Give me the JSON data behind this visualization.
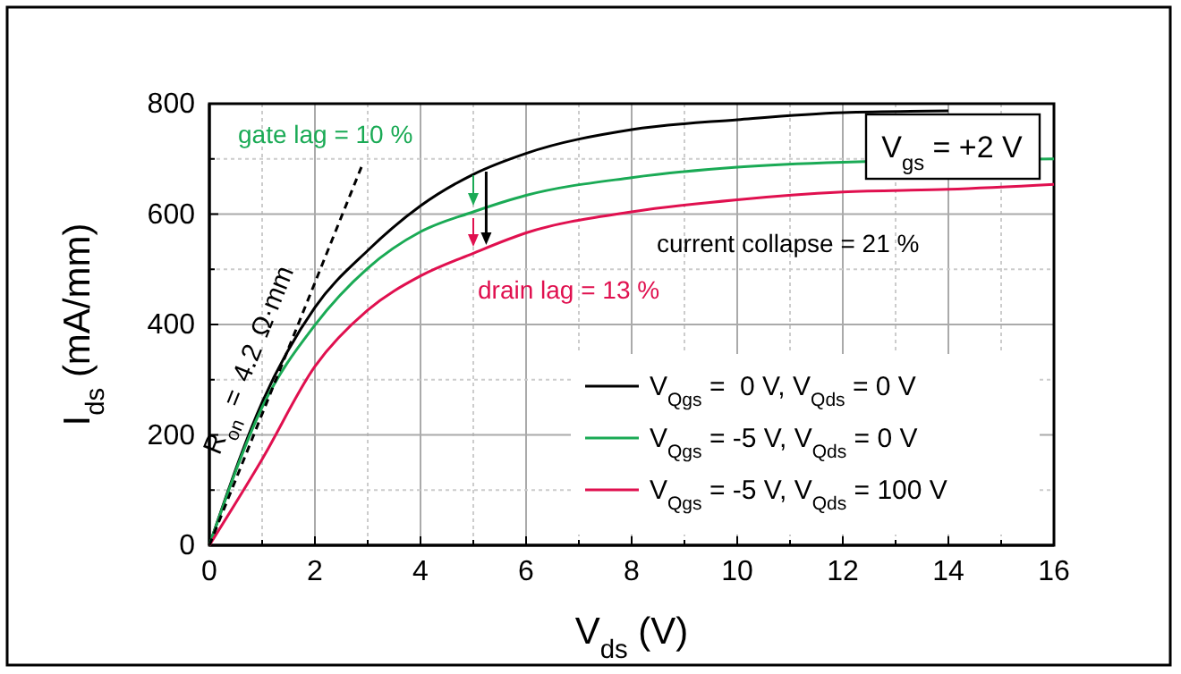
{
  "chart_data": {
    "type": "line",
    "xlabel": "V$_{ds}$ (V)",
    "ylabel": "I$_{ds}$ (mA/mm)",
    "xlim": [
      0,
      16
    ],
    "ylim": [
      0,
      800
    ],
    "xticks": [
      0,
      {
        "value": 1,
        "label": null
      },
      2,
      {
        "value": 3,
        "label": null
      },
      4,
      {
        "value": 5,
        "label": null
      },
      6,
      {
        "value": 7,
        "label": null
      },
      8,
      {
        "value": 9,
        "label": null
      },
      10,
      {
        "value": 11,
        "label": null
      },
      12,
      {
        "value": 13,
        "label": null
      },
      14,
      {
        "value": 15,
        "label": null
      },
      16
    ],
    "yticks": [
      0,
      {
        "value": 100,
        "label": null
      },
      200,
      {
        "value": 300,
        "label": null
      },
      400,
      {
        "value": 500,
        "label": null
      },
      600,
      {
        "value": 700,
        "label": null
      },
      800
    ],
    "grid": true,
    "legend": "bottom right",
    "series": [
      {
        "name": "V$_{Qgs}$ =  0 V, V$_{Qds}$ = 0 V",
        "color": "#000000",
        "x": [
          0,
          1,
          2,
          3,
          4,
          5,
          6,
          8,
          10,
          12,
          14
        ],
        "values": [
          0,
          259,
          431,
          534,
          615,
          672,
          710,
          753,
          771,
          784,
          787
        ]
      },
      {
        "name": "V$_{Qgs}$ = -5 V, V$_{Qds}$ = 0 V",
        "color": "#1aaa55",
        "x": [
          0,
          1,
          2,
          3,
          4,
          5,
          6,
          8,
          10,
          12,
          16
        ],
        "values": [
          0,
          250,
          399,
          502,
          568,
          604,
          634,
          666,
          685,
          694,
          700
        ]
      },
      {
        "name": "V$_{Qgs}$ = -5 V, V$_{Qds}$ = 100 V",
        "color": "#e0104f",
        "x": [
          0,
          1,
          2,
          3,
          4,
          5,
          6,
          8,
          10,
          12,
          14,
          16
        ],
        "values": [
          0,
          156,
          324,
          426,
          488,
          529,
          566,
          604,
          626,
          640,
          645,
          654
        ]
      },
      {
        "name": "R$_{on}$ = 4.2 Ω·mm",
        "color": "#000000",
        "line_style": "dashed",
        "x": [
          0,
          2.9
        ],
        "values": [
          0,
          690
        ]
      }
    ],
    "annotations": [
      "gate lag = 10 %",
      "drain lag = 13 %",
      "current collapse = 21 %",
      "V$_{gs}$ = +2 V"
    ]
  }
}
